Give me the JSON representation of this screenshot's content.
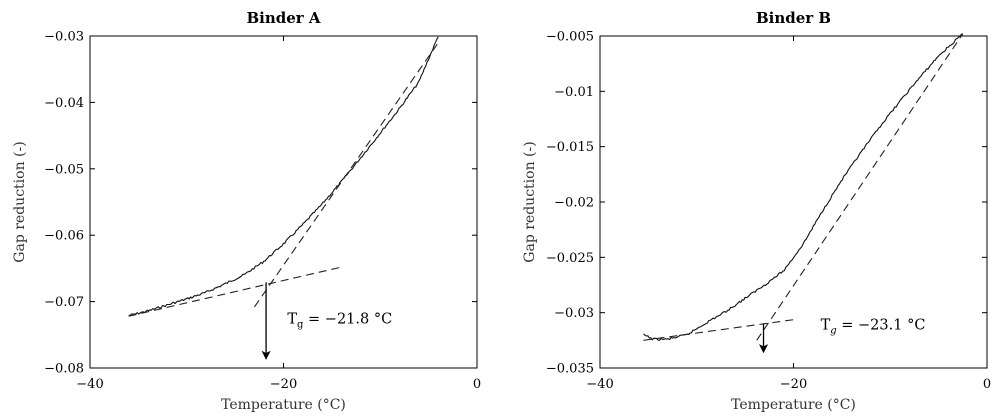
{
  "chart_data": [
    {
      "type": "line",
      "title": "Binder A",
      "xlabel": "Temperature (°C)",
      "ylabel": "Gap reduction (-)",
      "xlim": [
        -40,
        0
      ],
      "ylim": [
        -0.08,
        -0.03
      ],
      "xticks": [
        -40,
        -20,
        0
      ],
      "xtick_labels": [
        "−40",
        "−20",
        "0"
      ],
      "yticks": [
        -0.08,
        -0.07,
        -0.06,
        -0.05,
        -0.04,
        -0.03
      ],
      "ytick_labels": [
        "−0.08",
        "−0.07",
        "−0.06",
        "−0.05",
        "−0.04",
        "−0.03"
      ],
      "grid": false,
      "series": [
        {
          "x": [
            -36,
            -34,
            -32,
            -30,
            -28,
            -26,
            -24,
            -22,
            -20,
            -18,
            -16,
            -14,
            -12,
            -10,
            -8,
            -6,
            -4
          ],
          "y": [
            -0.0721,
            -0.0714,
            -0.0705,
            -0.0696,
            -0.0686,
            -0.0673,
            -0.0659,
            -0.0639,
            -0.0613,
            -0.0584,
            -0.0553,
            -0.0519,
            -0.0483,
            -0.0446,
            -0.0409,
            -0.0369,
            -0.03
          ]
        }
      ],
      "tangents": [
        {
          "x": [
            -36,
            -14
          ],
          "y": [
            -0.0722,
            -0.0648
          ]
        },
        {
          "x": [
            -23,
            -4
          ],
          "y": [
            -0.0708,
            -0.031
          ]
        }
      ],
      "arrow": {
        "x": -21.8,
        "y_from": -0.0671,
        "y_to": -0.0785
      },
      "annotation": {
        "prefix": "T",
        "sub": "g",
        "text": " = −21.8 °C",
        "x": -19.6,
        "y": -0.0733
      }
    },
    {
      "type": "line",
      "title": "Binder B",
      "xlabel": "Temperature (°C)",
      "ylabel": "Gap reduction (-)",
      "xlim": [
        -40,
        0
      ],
      "ylim": [
        -0.035,
        -0.005
      ],
      "xticks": [
        -40,
        -20,
        0
      ],
      "xtick_labels": [
        "−40",
        "−20",
        "0"
      ],
      "yticks": [
        -0.035,
        -0.03,
        -0.025,
        -0.02,
        -0.015,
        -0.01,
        -0.005
      ],
      "ytick_labels": [
        "−0.035",
        "−0.03",
        "−0.025",
        "−0.02",
        "−0.015",
        "−0.01",
        "−0.005"
      ],
      "grid": false,
      "series": [
        {
          "x": [
            -35.5,
            -34.5,
            -33,
            -31,
            -29,
            -27,
            -25,
            -23,
            -21,
            -19,
            -17,
            -15,
            -13,
            -11,
            -9,
            -7,
            -5,
            -3,
            -2.5
          ],
          "y": [
            -0.032,
            -0.0324,
            -0.0324,
            -0.032,
            -0.0309,
            -0.0299,
            -0.0287,
            -0.0275,
            -0.0262,
            -0.0238,
            -0.0208,
            -0.018,
            -0.0155,
            -0.0131,
            -0.0109,
            -0.0088,
            -0.0068,
            -0.0052,
            -0.0048
          ]
        }
      ],
      "tangents": [
        {
          "x": [
            -35.5,
            -19.7
          ],
          "y": [
            -0.0325,
            -0.0306
          ]
        },
        {
          "x": [
            -23.8,
            -2.5
          ],
          "y": [
            -0.0325,
            -0.0048
          ]
        }
      ],
      "arrow": {
        "x": -23.1,
        "y_from": -0.031,
        "y_to": -0.0335
      },
      "annotation": {
        "prefix": "T",
        "sub": "g",
        "text": " = −23.1 °C",
        "x": -17.2,
        "y": -0.0315
      }
    }
  ]
}
